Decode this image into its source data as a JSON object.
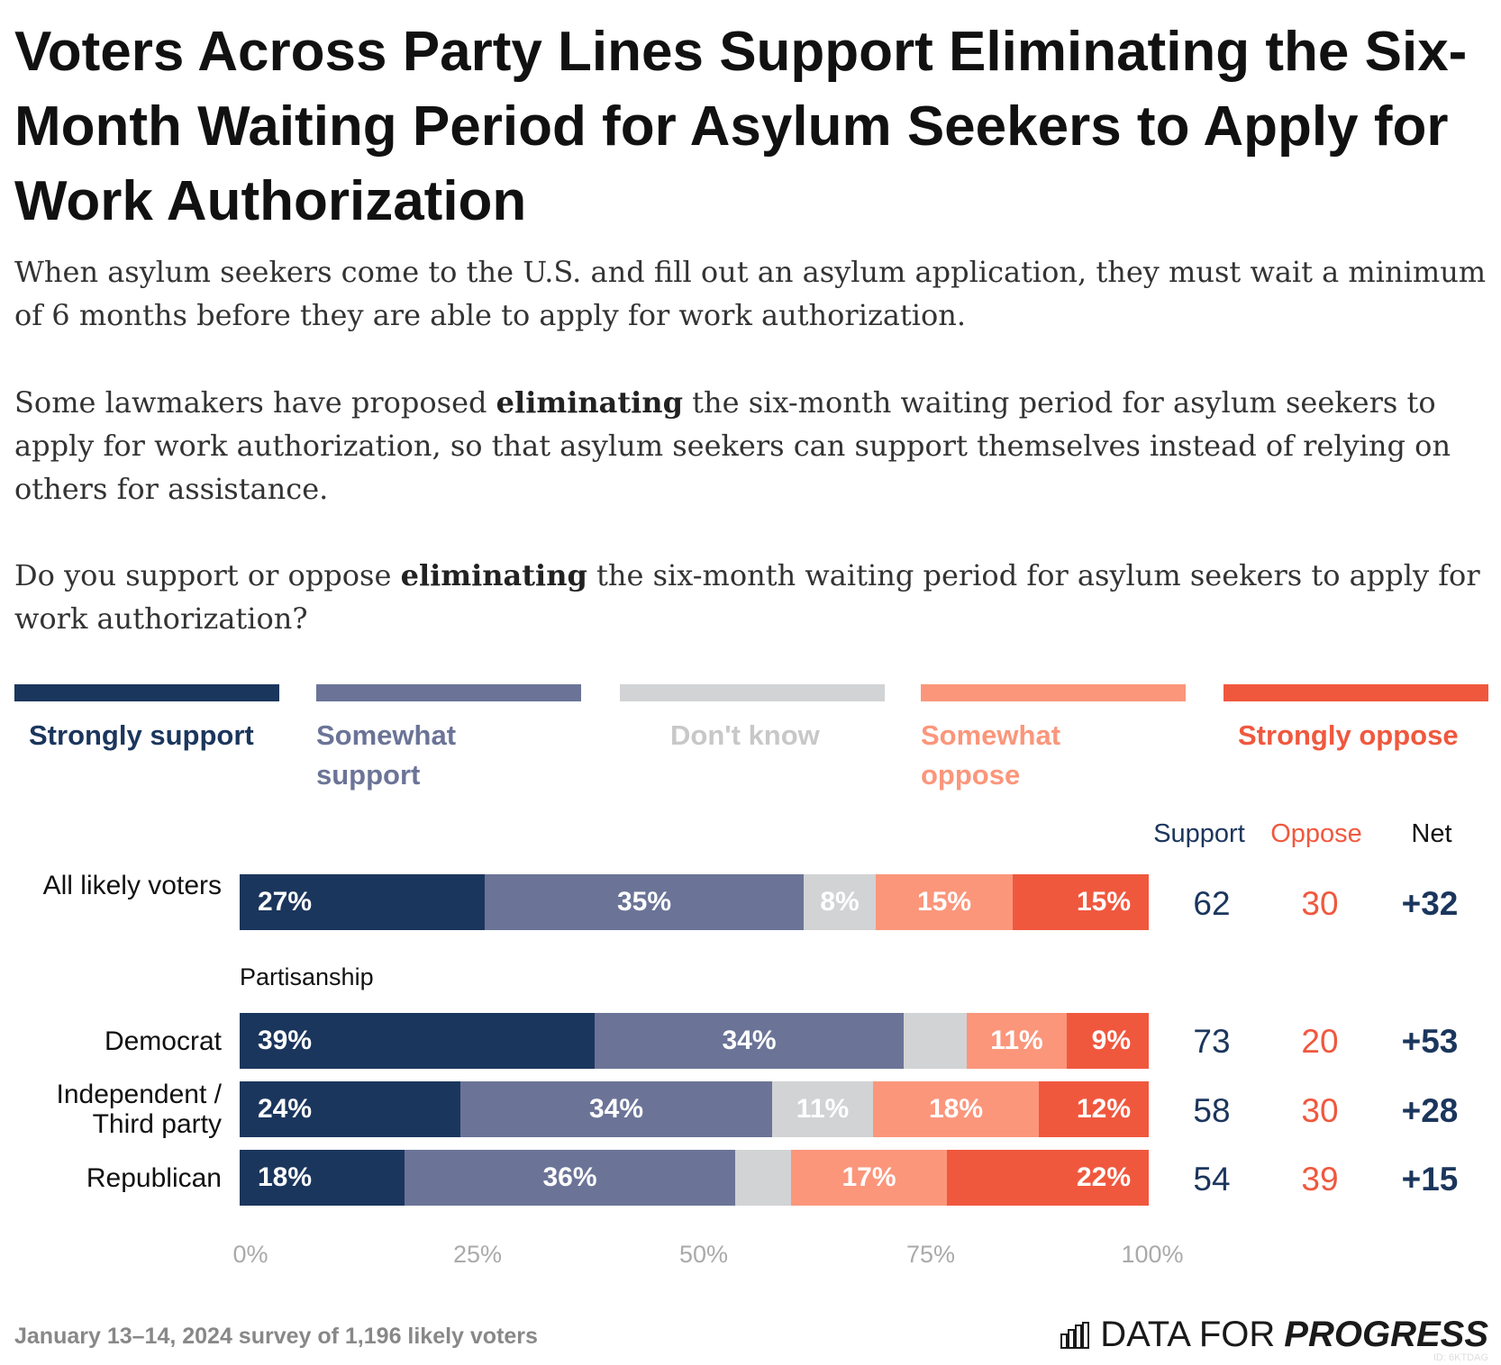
{
  "header": {
    "title": "Voters Across Party Lines Support Eliminating the Six-Month Waiting Period for Asylum Seekers to Apply for Work Authorization",
    "desc1": "When asylum seekers come to the U.S. and fill out an asylum application, they must wait a minimum of 6 months before they are able to apply for work authorization.",
    "desc2_a": "Some lawmakers have proposed ",
    "desc2_bold": "eliminating",
    "desc2_b": " the six-month waiting period for asylum seekers to apply for work authorization, so that asylum seekers can support themselves instead of relying on others for assistance.",
    "desc3_a": "Do you support or oppose ",
    "desc3_bold": "eliminating",
    "desc3_b": " the six-month waiting period for asylum seekers to apply for work authorization?"
  },
  "colors": {
    "strongly_support": "#1b365d",
    "somewhat_support": "#6b7497",
    "dont_know": "#d2d3d5",
    "somewhat_oppose": "#fb967b",
    "strongly_oppose": "#f0583e",
    "dont_know_text": "#c8c8c8"
  },
  "chart_data": {
    "type": "bar",
    "orientation": "horizontal-stacked",
    "legend": [
      "Strongly support",
      "Somewhat support",
      "Don't know",
      "Somewhat oppose",
      "Strongly oppose"
    ],
    "group_label": "Partisanship",
    "columns": {
      "support": "Support",
      "oppose": "Oppose",
      "net": "Net"
    },
    "x_ticks": [
      "0%",
      "25%",
      "50%",
      "75%",
      "100%"
    ],
    "xlim": [
      0,
      100
    ],
    "rows": [
      {
        "label": "All likely voters",
        "values": [
          27,
          35,
          8,
          15,
          15
        ],
        "labels": [
          "27%",
          "35%",
          "8%",
          "15%",
          "15%"
        ],
        "support": "62",
        "oppose": "30",
        "net": "+32"
      },
      {
        "label": "Democrat",
        "values": [
          39,
          34,
          7,
          11,
          9
        ],
        "labels": [
          "39%",
          "34%",
          "",
          "11%",
          "9%"
        ],
        "support": "73",
        "oppose": "20",
        "net": "+53"
      },
      {
        "label": "Independent / Third party",
        "values": [
          24,
          34,
          11,
          18,
          12
        ],
        "labels": [
          "24%",
          "34%",
          "11%",
          "18%",
          "12%"
        ],
        "support": "58",
        "oppose": "30",
        "net": "+28"
      },
      {
        "label": "Republican",
        "values": [
          18,
          36,
          6,
          17,
          22
        ],
        "labels": [
          "18%",
          "36%",
          "",
          "17%",
          "22%"
        ],
        "support": "54",
        "oppose": "39",
        "net": "+15"
      }
    ]
  },
  "footer": {
    "source": "January 13–14, 2024 survey of 1,196 likely voters",
    "brand_light": "DATA FOR",
    "brand_bold": "PROGRESS",
    "brand_id": "ID: 6KTDAG"
  }
}
